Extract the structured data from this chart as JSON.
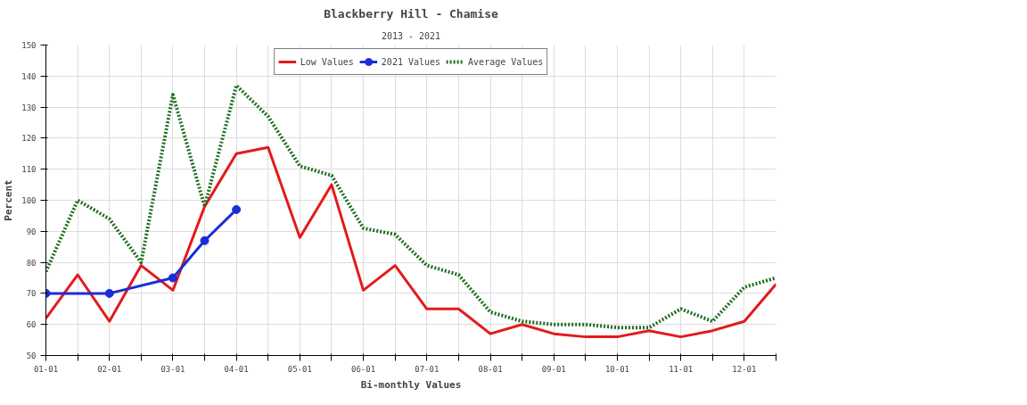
{
  "chart_data": {
    "type": "line",
    "title": "Blackberry Hill - Chamise",
    "subtitle": "2013 - 2021",
    "xlabel": "Bi-monthly Values",
    "ylabel": "Percent",
    "categories": [
      "01-01",
      null,
      "02-01",
      null,
      "03-01",
      null,
      "04-01",
      null,
      "05-01",
      null,
      "06-01",
      null,
      "07-01",
      null,
      "08-01",
      null,
      "09-01",
      null,
      "10-01",
      null,
      "11-01",
      null,
      "12-01",
      null
    ],
    "series": [
      {
        "name": "Low Values",
        "color": "#e31a1c",
        "line_style": "solid",
        "marker": "none",
        "values": [
          62,
          76,
          61,
          79,
          71,
          98,
          115,
          117,
          88,
          105,
          71,
          79,
          65,
          65,
          57,
          60,
          57,
          56,
          56,
          58,
          56,
          58,
          61,
          73
        ]
      },
      {
        "name": "2021 Values",
        "color": "#1a2ed6",
        "line_style": "solid",
        "marker": "circle",
        "values": [
          70,
          null,
          70,
          null,
          75,
          87,
          97,
          null,
          null,
          null,
          null,
          null,
          null,
          null,
          null,
          null,
          null,
          null,
          null,
          null,
          null,
          null,
          null,
          null
        ]
      },
      {
        "name": "Average Values",
        "color": "#1f6e1f",
        "line_style": "dotted",
        "marker": "none",
        "values": [
          77,
          100,
          94,
          80,
          134,
          98,
          137,
          127,
          111,
          108,
          91,
          89,
          79,
          76,
          64,
          61,
          60,
          60,
          59,
          59,
          65,
          61,
          72,
          75
        ]
      }
    ],
    "ylim": [
      50,
      150
    ],
    "yticks": [
      50,
      60,
      70,
      80,
      90,
      100,
      110,
      120,
      130,
      140,
      150
    ],
    "grid": true,
    "legend": "top"
  }
}
